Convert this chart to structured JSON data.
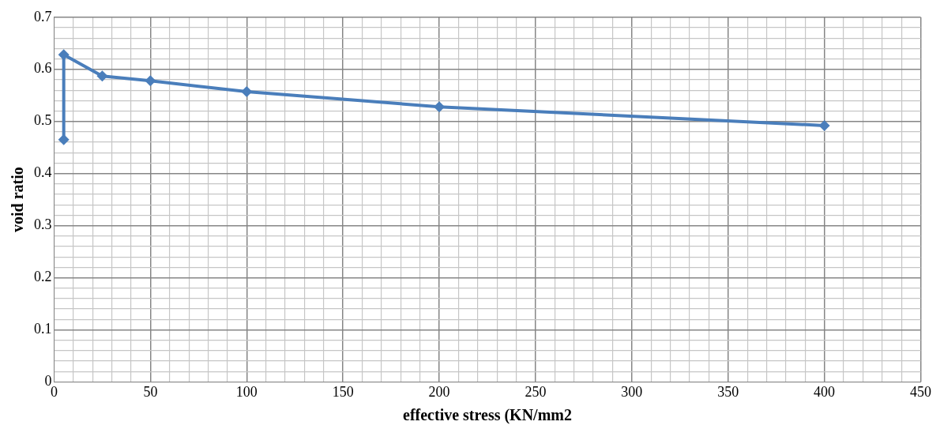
{
  "chart_data": {
    "type": "scatter",
    "xlabel": "effective stress (KN/mm2",
    "ylabel": "void ratio",
    "series": [
      {
        "type": "line",
        "color": "#4a7ebb",
        "x": [
          5,
          5,
          25,
          50,
          100,
          200,
          400
        ],
        "values": [
          0.465,
          0.628,
          0.587,
          0.578,
          0.557,
          0.528,
          0.492
        ]
      }
    ],
    "xlim": [
      0,
      450
    ],
    "xticks": [
      0,
      {
        "value": 10,
        "label": null
      },
      {
        "value": 20,
        "label": null
      },
      {
        "value": 30,
        "label": null
      },
      {
        "value": 40,
        "label": null
      },
      50,
      {
        "value": 60,
        "label": null
      },
      {
        "value": 70,
        "label": null
      },
      {
        "value": 80,
        "label": null
      },
      {
        "value": 90,
        "label": null
      },
      100,
      {
        "value": 110,
        "label": null
      },
      {
        "value": 120,
        "label": null
      },
      {
        "value": 130,
        "label": null
      },
      {
        "value": 140,
        "label": null
      },
      150,
      {
        "value": 160,
        "label": null
      },
      {
        "value": 170,
        "label": null
      },
      {
        "value": 180,
        "label": null
      },
      {
        "value": 190,
        "label": null
      },
      200,
      {
        "value": 210,
        "label": null
      },
      {
        "value": 220,
        "label": null
      },
      {
        "value": 230,
        "label": null
      },
      {
        "value": 240,
        "label": null
      },
      250,
      {
        "value": 260,
        "label": null
      },
      {
        "value": 270,
        "label": null
      },
      {
        "value": 280,
        "label": null
      },
      {
        "value": 290,
        "label": null
      },
      300,
      {
        "value": 310,
        "label": null
      },
      {
        "value": 320,
        "label": null
      },
      {
        "value": 330,
        "label": null
      },
      {
        "value": 340,
        "label": null
      },
      350,
      {
        "value": 360,
        "label": null
      },
      {
        "value": 370,
        "label": null
      },
      {
        "value": 380,
        "label": null
      },
      {
        "value": 390,
        "label": null
      },
      400,
      {
        "value": 410,
        "label": null
      },
      {
        "value": 420,
        "label": null
      },
      {
        "value": 430,
        "label": null
      },
      {
        "value": 440,
        "label": null
      },
      450
    ],
    "ylim": [
      0,
      0.7
    ],
    "yticks": [
      0,
      {
        "value": 0.02,
        "label": null
      },
      {
        "value": 0.04,
        "label": null
      },
      {
        "value": 0.06,
        "label": null
      },
      {
        "value": 0.08,
        "label": null
      },
      0.1,
      {
        "value": 0.12,
        "label": null
      },
      {
        "value": 0.14,
        "label": null
      },
      {
        "value": 0.16,
        "label": null
      },
      {
        "value": 0.18,
        "label": null
      },
      0.2,
      {
        "value": 0.22,
        "label": null
      },
      {
        "value": 0.24,
        "label": null
      },
      {
        "value": 0.26,
        "label": null
      },
      {
        "value": 0.28,
        "label": null
      },
      0.3,
      {
        "value": 0.32,
        "label": null
      },
      {
        "value": 0.34,
        "label": null
      },
      {
        "value": 0.36,
        "label": null
      },
      {
        "value": 0.38,
        "label": null
      },
      0.4,
      {
        "value": 0.42,
        "label": null
      },
      {
        "value": 0.44,
        "label": null
      },
      {
        "value": 0.46,
        "label": null
      },
      {
        "value": 0.48,
        "label": null
      },
      0.5,
      {
        "value": 0.52,
        "label": null
      },
      {
        "value": 0.54,
        "label": null
      },
      {
        "value": 0.56,
        "label": null
      },
      {
        "value": 0.58,
        "label": null
      },
      0.6,
      {
        "value": 0.62,
        "label": null
      },
      {
        "value": 0.64,
        "label": null
      },
      {
        "value": 0.66,
        "label": null
      },
      {
        "value": 0.68,
        "label": null
      },
      0.7
    ],
    "grid": true,
    "marker": "diamond",
    "line_style": "solid"
  }
}
